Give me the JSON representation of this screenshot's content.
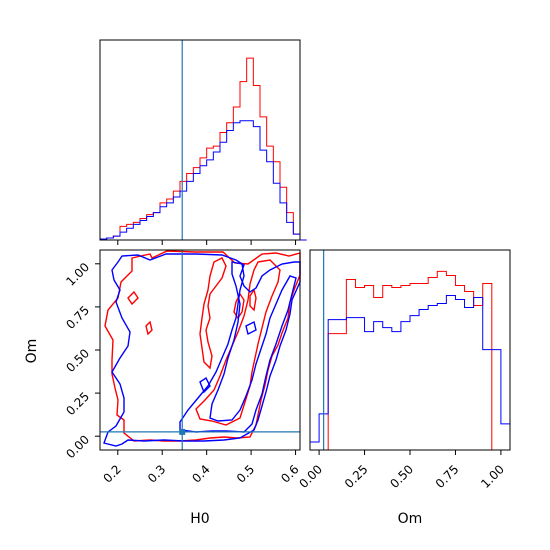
{
  "chart_data": [
    {
      "type": "histogram",
      "panel": "top-left",
      "variable": "H0",
      "x_range": [
        0.16,
        0.61
      ],
      "bin_width": 0.015,
      "marker_line": 0.345,
      "series": [
        {
          "color": "#ff0000",
          "x_start": 0.16,
          "values": [
            0.5,
            1,
            2,
            7,
            8,
            9,
            11,
            13,
            14,
            19,
            21,
            25,
            30,
            34,
            37,
            42,
            47,
            48,
            55,
            60,
            68,
            81,
            93,
            79,
            63,
            48,
            40,
            27,
            14,
            3,
            0
          ]
        },
        {
          "color": "#0000ff",
          "x_start": 0.16,
          "values": [
            0.5,
            1,
            2,
            4,
            6,
            8,
            10,
            12,
            14,
            17,
            19,
            22,
            25,
            30,
            34,
            38,
            41,
            45,
            50,
            56,
            60,
            61,
            61,
            58,
            46,
            40,
            29,
            19,
            9,
            3,
            0
          ]
        }
      ]
    },
    {
      "type": "contour",
      "panel": "bottom-left",
      "xlabel": "H0",
      "ylabel": "Om",
      "x_ticks": [
        "0.2",
        "0.3",
        "0.4",
        "0.5",
        "0.6"
      ],
      "y_ticks": [
        "0.00",
        "0.25",
        "0.50",
        "0.75",
        "1.00"
      ],
      "x_range": [
        0.16,
        0.61
      ],
      "y_range": [
        -0.08,
        1.08
      ],
      "marker_x": 0.345,
      "marker_y": 0.025,
      "series": [
        {
          "color": "#ff0000",
          "name": ""
        },
        {
          "color": "#0000ff",
          "name": ""
        }
      ]
    },
    {
      "type": "histogram",
      "panel": "bottom-right",
      "variable": "Om",
      "xlabel": "Om",
      "x_ticks": [
        "0.00",
        "0.25",
        "0.50",
        "0.75",
        "1.00"
      ],
      "x_range": [
        -0.05,
        1.05
      ],
      "bin_width": 0.05,
      "marker_line": 0.025,
      "series": [
        {
          "color": "#ff0000",
          "values": [
            0,
            0,
            58,
            58,
            85,
            81,
            82,
            76,
            82,
            81,
            82,
            83,
            83,
            86,
            89,
            87,
            82,
            79,
            72,
            83,
            0,
            0
          ]
        },
        {
          "color": "#0000ff",
          "values": [
            4,
            18,
            65,
            65,
            66,
            66,
            59,
            64,
            61,
            59,
            64,
            67,
            70,
            72,
            73,
            77,
            75,
            71,
            76,
            50,
            50,
            13
          ]
        }
      ]
    }
  ],
  "colors": {
    "red": "#ff0000",
    "blue": "#0000ff",
    "marker": "#1f77b4"
  }
}
